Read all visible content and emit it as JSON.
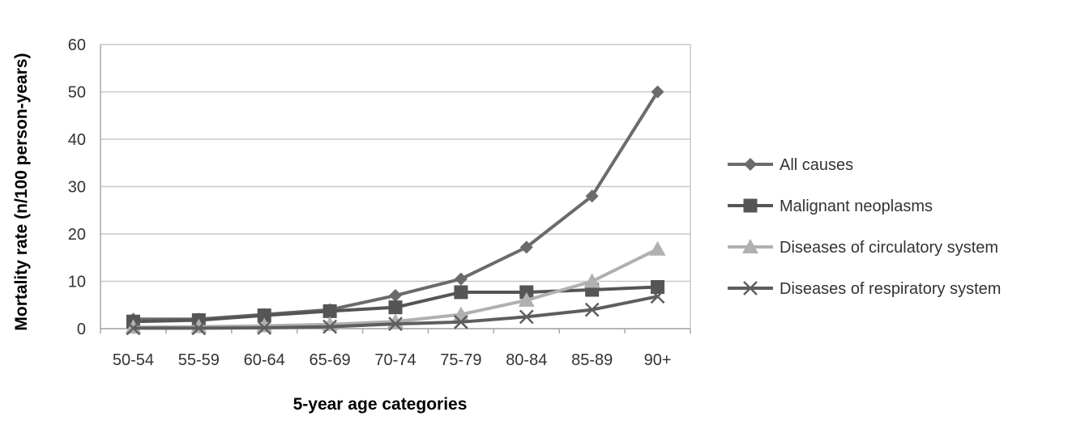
{
  "chart_data": {
    "type": "line",
    "xlabel": "5-year age categories",
    "ylabel": "Mortality rate (n/100 person-years)",
    "categories": [
      "50-54",
      "55-59",
      "60-64",
      "65-69",
      "70-74",
      "75-79",
      "80-84",
      "85-89",
      "90+"
    ],
    "ylim": [
      0,
      60
    ],
    "yticks": [
      "0",
      "10",
      "20",
      "30",
      "40",
      "50",
      "60"
    ],
    "grid": true,
    "legend_position": "right",
    "series": [
      {
        "name": "All causes",
        "marker": "diamond",
        "color": "#6b6b6b",
        "values": [
          2.0,
          2.0,
          3.0,
          4.0,
          7.0,
          10.5,
          17.2,
          28.0,
          50.0
        ]
      },
      {
        "name": "Malignant neoplasms",
        "marker": "square",
        "color": "#555555",
        "values": [
          1.5,
          1.8,
          2.8,
          3.7,
          4.5,
          7.7,
          7.7,
          8.2,
          8.8
        ]
      },
      {
        "name": "Diseases of circulatory system",
        "marker": "triangle",
        "color": "#b0b0b0",
        "values": [
          0.3,
          0.4,
          0.6,
          0.9,
          1.5,
          3.0,
          6.0,
          10.0,
          16.8
        ]
      },
      {
        "name": "Diseases of respiratory system",
        "marker": "cross",
        "color": "#5e5e5e",
        "values": [
          0.1,
          0.1,
          0.2,
          0.4,
          1.0,
          1.4,
          2.5,
          4.0,
          6.8
        ]
      }
    ]
  }
}
